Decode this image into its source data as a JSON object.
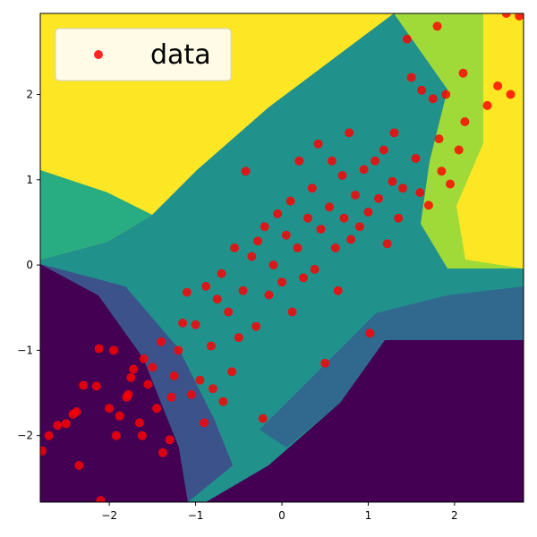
{
  "chart_data": {
    "type": "scatter",
    "title": "",
    "xlabel": "",
    "ylabel": "",
    "xlim": [
      -2.8,
      2.8
    ],
    "ylim": [
      -2.78,
      2.95
    ],
    "grid": false,
    "legend": {
      "placement": "upper-left",
      "entries": [
        "data"
      ]
    },
    "x_ticks": [
      {
        "value": -2,
        "label": "−2"
      },
      {
        "value": -1,
        "label": "−1"
      },
      {
        "value": 0,
        "label": "0"
      },
      {
        "value": 1,
        "label": "1"
      },
      {
        "value": 2,
        "label": "2"
      }
    ],
    "y_ticks": [
      {
        "value": -2,
        "label": "−2"
      },
      {
        "value": -1,
        "label": "−1"
      },
      {
        "value": 0,
        "label": "0"
      },
      {
        "value": 1,
        "label": "1"
      },
      {
        "value": 2,
        "label": "2"
      }
    ],
    "background": {
      "type": "heatmap",
      "colormap": "viridis",
      "description_colors": [
        "#440154",
        "#31688e",
        "#21918c",
        "#35b779",
        "#fde725"
      ]
    },
    "series": [
      {
        "name": "data",
        "color": "#ff0000",
        "points": [
          [
            -2.78,
            -2.18
          ],
          [
            -2.7,
            -2.0
          ],
          [
            -2.6,
            -1.88
          ],
          [
            -2.5,
            -1.86
          ],
          [
            -2.42,
            -1.75
          ],
          [
            -2.38,
            -1.72
          ],
          [
            -2.35,
            -2.35
          ],
          [
            -2.3,
            -1.41
          ],
          [
            -2.15,
            -1.42
          ],
          [
            -2.12,
            -0.98
          ],
          [
            -2.1,
            -2.76
          ],
          [
            -2.0,
            -1.68
          ],
          [
            -1.95,
            -1.0
          ],
          [
            -1.92,
            -2.0
          ],
          [
            -1.88,
            -1.77
          ],
          [
            -1.8,
            -1.55
          ],
          [
            -1.78,
            -1.52
          ],
          [
            -1.75,
            -1.32
          ],
          [
            -1.72,
            -1.22
          ],
          [
            -1.65,
            -1.85
          ],
          [
            -1.62,
            -2.0
          ],
          [
            -1.6,
            -1.1
          ],
          [
            -1.55,
            -1.4
          ],
          [
            -1.5,
            -1.2
          ],
          [
            -1.45,
            -1.68
          ],
          [
            -1.4,
            -0.9
          ],
          [
            -1.38,
            -2.2
          ],
          [
            -1.3,
            -2.05
          ],
          [
            -1.28,
            -1.55
          ],
          [
            -1.25,
            -1.3
          ],
          [
            -1.2,
            -1.0
          ],
          [
            -1.15,
            -0.68
          ],
          [
            -1.1,
            -0.32
          ],
          [
            -1.05,
            -1.52
          ],
          [
            -1.0,
            -0.7
          ],
          [
            -0.95,
            -1.35
          ],
          [
            -0.9,
            -1.85
          ],
          [
            -0.88,
            -0.25
          ],
          [
            -0.82,
            -0.95
          ],
          [
            -0.8,
            -1.45
          ],
          [
            -0.75,
            -0.4
          ],
          [
            -0.7,
            -0.1
          ],
          [
            -0.68,
            -1.6
          ],
          [
            -0.62,
            -0.55
          ],
          [
            -0.58,
            -1.25
          ],
          [
            -0.55,
            0.2
          ],
          [
            -0.5,
            -0.85
          ],
          [
            -0.45,
            -0.3
          ],
          [
            -0.42,
            1.1
          ],
          [
            -0.35,
            0.1
          ],
          [
            -0.3,
            -0.72
          ],
          [
            -0.28,
            0.28
          ],
          [
            -0.22,
            -1.8
          ],
          [
            -0.2,
            0.45
          ],
          [
            -0.15,
            -0.35
          ],
          [
            -0.1,
            0.0
          ],
          [
            -0.05,
            0.6
          ],
          [
            0.0,
            -0.2
          ],
          [
            0.05,
            0.35
          ],
          [
            0.1,
            0.75
          ],
          [
            0.12,
            -0.55
          ],
          [
            0.18,
            0.2
          ],
          [
            0.2,
            1.22
          ],
          [
            0.25,
            -0.15
          ],
          [
            0.3,
            0.55
          ],
          [
            0.35,
            0.9
          ],
          [
            0.38,
            -0.05
          ],
          [
            0.42,
            1.42
          ],
          [
            0.45,
            0.42
          ],
          [
            0.5,
            -1.15
          ],
          [
            0.55,
            0.68
          ],
          [
            0.58,
            1.22
          ],
          [
            0.62,
            0.2
          ],
          [
            0.65,
            -0.3
          ],
          [
            0.7,
            1.05
          ],
          [
            0.72,
            0.55
          ],
          [
            0.78,
            1.55
          ],
          [
            0.8,
            0.3
          ],
          [
            0.85,
            0.82
          ],
          [
            0.9,
            0.45
          ],
          [
            0.95,
            1.12
          ],
          [
            1.0,
            0.62
          ],
          [
            1.02,
            -0.8
          ],
          [
            1.08,
            1.22
          ],
          [
            1.12,
            0.78
          ],
          [
            1.18,
            1.35
          ],
          [
            1.22,
            0.25
          ],
          [
            1.28,
            0.98
          ],
          [
            1.3,
            1.55
          ],
          [
            1.35,
            0.55
          ],
          [
            1.4,
            0.9
          ],
          [
            1.45,
            2.65
          ],
          [
            1.5,
            2.2
          ],
          [
            1.55,
            1.25
          ],
          [
            1.6,
            0.85
          ],
          [
            1.62,
            2.05
          ],
          [
            1.7,
            0.7
          ],
          [
            1.75,
            1.95
          ],
          [
            1.8,
            2.8
          ],
          [
            1.82,
            1.48
          ],
          [
            1.85,
            1.1
          ],
          [
            1.9,
            2.0
          ],
          [
            1.95,
            0.95
          ],
          [
            2.05,
            1.35
          ],
          [
            2.1,
            2.25
          ],
          [
            2.12,
            1.68
          ],
          [
            2.38,
            1.87
          ],
          [
            2.5,
            2.1
          ],
          [
            2.6,
            2.95
          ],
          [
            2.65,
            2.0
          ],
          [
            2.75,
            2.92
          ]
        ]
      }
    ]
  }
}
